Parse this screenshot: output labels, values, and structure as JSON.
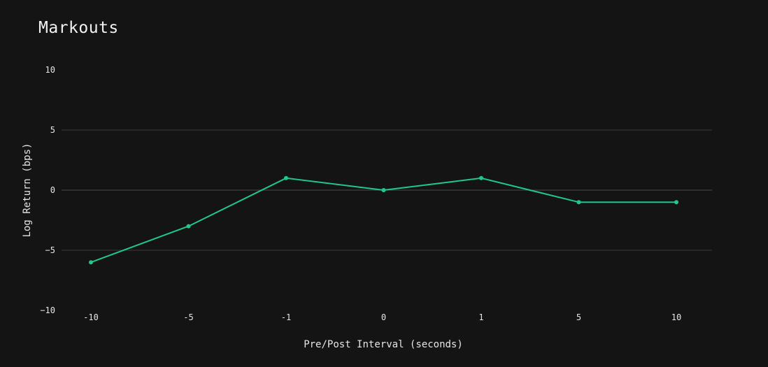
{
  "chart_data": {
    "type": "line",
    "title": "Markouts",
    "xlabel": "Pre/Post Interval (seconds)",
    "ylabel": "Log Return (bps)",
    "categories": [
      "-10",
      "-5",
      "-1",
      "0",
      "1",
      "5",
      "10"
    ],
    "series": [
      {
        "values": [
          -6,
          -3,
          1,
          0,
          1,
          -1,
          -1
        ],
        "color": "#1fc98a"
      }
    ],
    "ylim": [
      -10,
      10
    ],
    "yticks": [
      10,
      5,
      0,
      -5,
      -10
    ],
    "yticks_text": [
      "10",
      "5",
      "0",
      "−5",
      "−10"
    ],
    "x_axis_scale": "categorical",
    "grid": true,
    "colors": {
      "background": "#141414",
      "gridline": "#3a3a3a",
      "text": "#e6e6e6",
      "line": "#1fc98a"
    }
  }
}
